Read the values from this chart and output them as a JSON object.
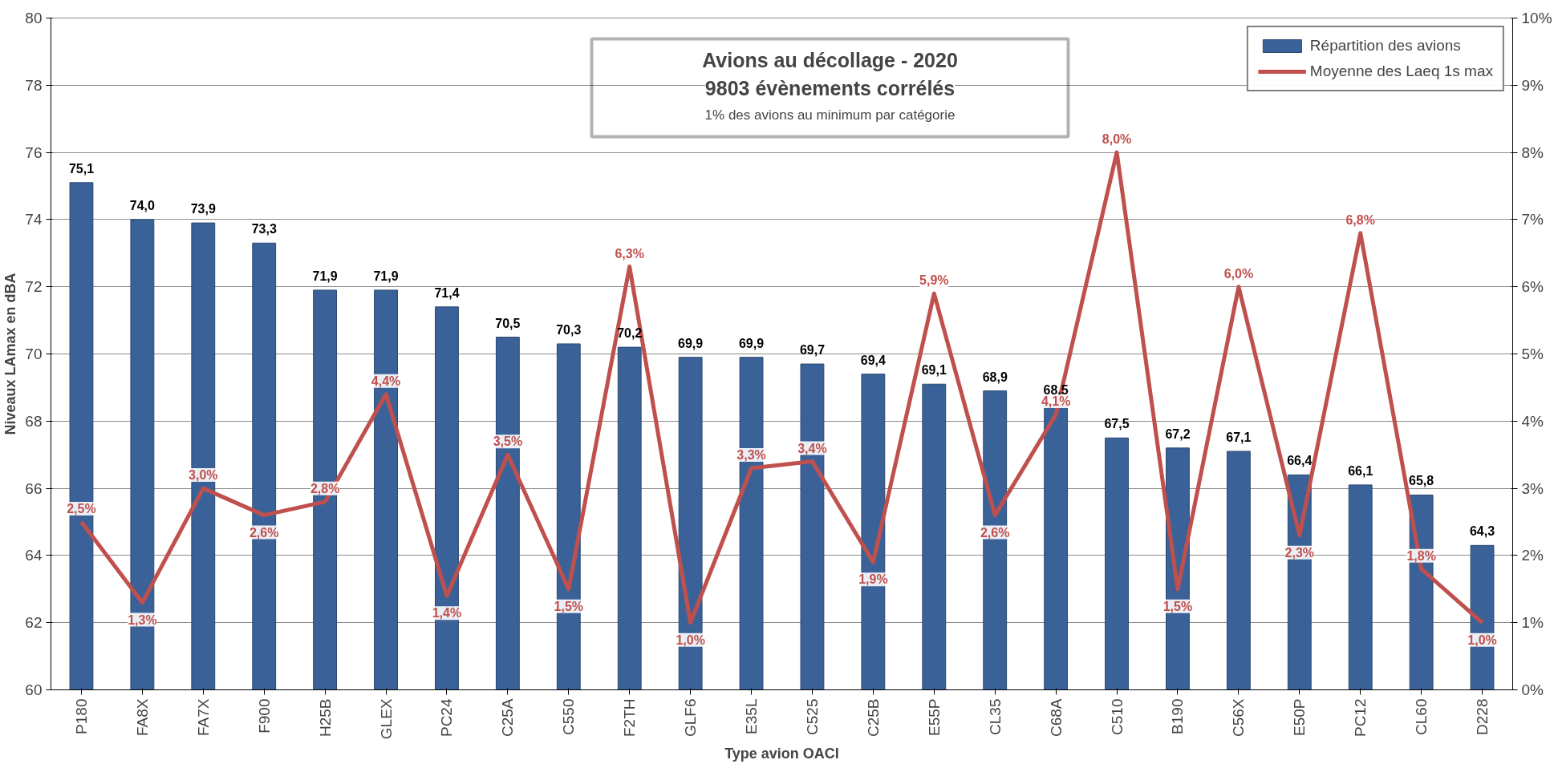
{
  "chart_data": {
    "type": "bar",
    "title": "Avions au décollage - 2020",
    "subtitle": "9803 évènements corrélés",
    "annotations": [
      "1% des avions au minimum par catégorie"
    ],
    "xlabel": "Type avion OACI",
    "ylabel": "Niveaux LAmax en dBA",
    "categories": [
      "P180",
      "FA8X",
      "FA7X",
      "F900",
      "H25B",
      "GLEX",
      "PC24",
      "C25A",
      "C550",
      "F2TH",
      "GLF6",
      "E35L",
      "C525",
      "C25B",
      "E55P",
      "CL35",
      "C68A",
      "C510",
      "B190",
      "C56X",
      "E50P",
      "PC12",
      "CL60",
      "D228"
    ],
    "series": [
      {
        "name": "Répartition des avions",
        "color": "#3b6298",
        "values": [
          75.1,
          74.0,
          73.9,
          73.3,
          71.9,
          71.9,
          71.4,
          70.5,
          70.3,
          70.2,
          69.9,
          69.9,
          69.7,
          69.4,
          69.1,
          68.9,
          68.5,
          67.5,
          67.2,
          67.1,
          66.4,
          66.1,
          65.8,
          64.3
        ],
        "value_labels": [
          "75,1",
          "74,0",
          "73,9",
          "73,3",
          "71,9",
          "71,9",
          "71,4",
          "70,5",
          "70,3",
          "70,2",
          "69,9",
          "69,9",
          "69,7",
          "69,4",
          "69,1",
          "68,9",
          "68,5",
          "67,5",
          "67,2",
          "67,1",
          "66,4",
          "66,1",
          "65,8",
          "64,3"
        ]
      },
      {
        "name": "Moyenne des Laeq 1s max",
        "type": "line",
        "axis": "y2",
        "color": "#c0504d",
        "values": [
          2.5,
          1.3,
          3.0,
          2.6,
          2.8,
          4.4,
          1.4,
          3.5,
          1.5,
          6.3,
          1.0,
          3.3,
          3.4,
          1.9,
          5.9,
          2.6,
          4.1,
          8.0,
          1.5,
          6.0,
          2.3,
          6.8,
          1.8,
          1.0
        ],
        "value_labels": [
          "2,5%",
          "1,3%",
          "3,0%",
          "2,6%",
          "2,8%",
          "4,4%",
          "1,4%",
          "3,5%",
          "1,5%",
          "6,3%",
          "1,0%",
          "3,3%",
          "3,4%",
          "1,9%",
          "5,9%",
          "2,6%",
          "4,1%",
          "8,0%",
          "1,5%",
          "6,0%",
          "2,3%",
          "6,8%",
          "1,8%",
          "1,0%"
        ]
      }
    ],
    "ylim": [
      60,
      80
    ],
    "yticks": [
      60,
      62,
      64,
      66,
      68,
      70,
      72,
      74,
      76,
      78,
      80
    ],
    "y2lim": [
      0,
      10
    ],
    "y2ticks": [
      {
        "value": 0,
        "label": "0%"
      },
      {
        "value": 1,
        "label": "1%"
      },
      {
        "value": 2,
        "label": "2%"
      },
      {
        "value": 3,
        "label": "3%"
      },
      {
        "value": 4,
        "label": "4%"
      },
      {
        "value": 5,
        "label": "5%"
      },
      {
        "value": 6,
        "label": "6%"
      },
      {
        "value": 7,
        "label": "7%"
      },
      {
        "value": 8,
        "label": "8%"
      },
      {
        "value": 9,
        "label": "9%"
      },
      {
        "value": 10,
        "label": "10%"
      }
    ],
    "grid": "y",
    "legend": "top right"
  }
}
